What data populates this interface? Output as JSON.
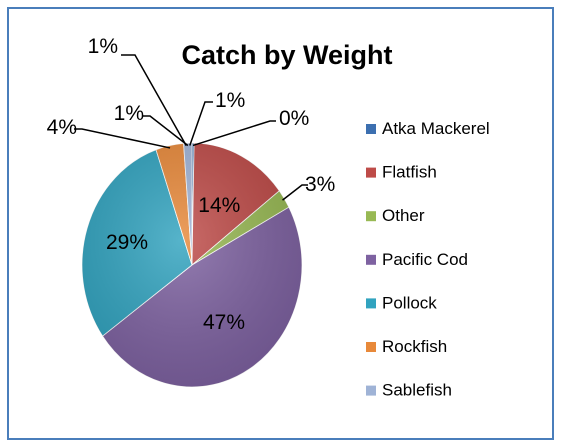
{
  "chart_data": {
    "type": "pie",
    "title": "Catch by Weight",
    "categories": [
      "Atka Mackerel",
      "Flatfish",
      "Other",
      "Pacific Cod",
      "Pollock",
      "Rockfish",
      "Sablefish"
    ],
    "values": [
      0.3,
      14,
      2.5,
      47,
      29,
      4,
      1.2
    ],
    "value_labels": [
      "0%",
      "14%",
      "3%",
      "47%",
      "29%",
      "4%",
      "1%"
    ],
    "extra_labels": [
      "1%",
      "1%"
    ],
    "colors": [
      "#3c6fb0",
      "#be4b48",
      "#98b954",
      "#7e62a1",
      "#31a3bf",
      "#e8893a",
      "#9fb3d6"
    ],
    "legend_position": "right"
  }
}
